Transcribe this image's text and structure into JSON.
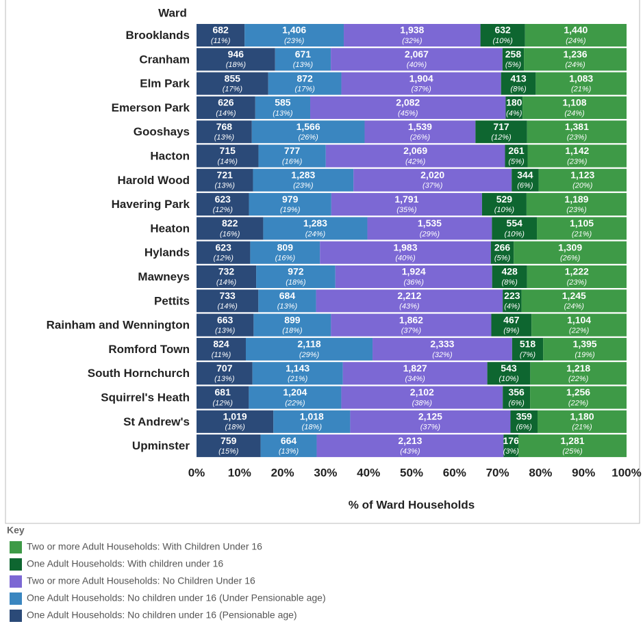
{
  "chart_data": {
    "type": "stacked_percent_barh",
    "category_header": "Ward",
    "xlabel": "% of Ward Households",
    "legend_title": "Key",
    "xlim": [
      0,
      100
    ],
    "xticks": [
      {
        "value": 0,
        "label": "0%"
      },
      {
        "value": 10,
        "label": "10%"
      },
      {
        "value": 20,
        "label": "20%"
      },
      {
        "value": 30,
        "label": "30%"
      },
      {
        "value": 40,
        "label": "40%"
      },
      {
        "value": 50,
        "label": "50%"
      },
      {
        "value": 60,
        "label": "60%"
      },
      {
        "value": 70,
        "label": "70%"
      },
      {
        "value": 80,
        "label": "80%"
      },
      {
        "value": 90,
        "label": "90%"
      },
      {
        "value": 100,
        "label": "100%"
      }
    ],
    "categories": [
      "Brooklands",
      "Cranham",
      "Elm Park",
      "Emerson Park",
      "Gooshays",
      "Hacton",
      "Harold Wood",
      "Havering Park",
      "Heaton",
      "Hylands",
      "Mawneys",
      "Pettits",
      "Rainham and Wennington",
      "Romford Town",
      "South Hornchurch",
      "Squirrel's Heath",
      "St Andrew's",
      "Upminster"
    ],
    "series": [
      {
        "name": "One Adult Households: No children under 16 (Pensionable age)",
        "color": "#2b4a78",
        "values": [
          682,
          946,
          855,
          626,
          768,
          715,
          721,
          623,
          822,
          623,
          732,
          733,
          663,
          824,
          707,
          681,
          1019,
          759
        ],
        "value_labels": [
          "682",
          "946",
          "855",
          "626",
          "768",
          "715",
          "721",
          "623",
          "822",
          "623",
          "732",
          "733",
          "663",
          "824",
          "707",
          "681",
          "1,019",
          "759"
        ],
        "percent_labels": [
          "(11%)",
          "(18%)",
          "(17%)",
          "(14%)",
          "(13%)",
          "(14%)",
          "(13%)",
          "(12%)",
          "(16%)",
          "(12%)",
          "(14%)",
          "(14%)",
          "(13%)",
          "(11%)",
          "(13%)",
          "(12%)",
          "(18%)",
          "(15%)"
        ]
      },
      {
        "name": "One Adult Households: No children under 16 (Under Pensionable age)",
        "color": "#3a86c0",
        "values": [
          1406,
          671,
          872,
          585,
          1566,
          777,
          1283,
          979,
          1283,
          809,
          972,
          684,
          899,
          2118,
          1143,
          1204,
          1018,
          664
        ],
        "value_labels": [
          "1,406",
          "671",
          "872",
          "585",
          "1,566",
          "777",
          "1,283",
          "979",
          "1,283",
          "809",
          "972",
          "684",
          "899",
          "2,118",
          "1,143",
          "1,204",
          "1,018",
          "664"
        ],
        "percent_labels": [
          "(23%)",
          "(13%)",
          "(17%)",
          "(13%)",
          "(26%)",
          "(16%)",
          "(23%)",
          "(19%)",
          "(24%)",
          "(16%)",
          "(18%)",
          "(13%)",
          "(18%)",
          "(29%)",
          "(21%)",
          "(22%)",
          "(18%)",
          "(13%)"
        ]
      },
      {
        "name": "Two or more Adult Households: No Children Under 16",
        "color": "#7c68d4",
        "values": [
          1938,
          2067,
          1904,
          2082,
          1539,
          2069,
          2020,
          1791,
          1535,
          1983,
          1924,
          2212,
          1862,
          2333,
          1827,
          2102,
          2125,
          2213
        ],
        "value_labels": [
          "1,938",
          "2,067",
          "1,904",
          "2,082",
          "1,539",
          "2,069",
          "2,020",
          "1,791",
          "1,535",
          "1,983",
          "1,924",
          "2,212",
          "1,862",
          "2,333",
          "1,827",
          "2,102",
          "2,125",
          "2,213"
        ],
        "percent_labels": [
          "(32%)",
          "(40%)",
          "(37%)",
          "(45%)",
          "(26%)",
          "(42%)",
          "(37%)",
          "(35%)",
          "(29%)",
          "(40%)",
          "(36%)",
          "(43%)",
          "(37%)",
          "(32%)",
          "(34%)",
          "(38%)",
          "(37%)",
          "(43%)"
        ]
      },
      {
        "name": "One Adult Households: With children under 16",
        "color": "#0e6630",
        "values": [
          632,
          258,
          413,
          180,
          717,
          261,
          344,
          529,
          554,
          266,
          428,
          223,
          467,
          518,
          543,
          356,
          359,
          176
        ],
        "value_labels": [
          "632",
          "258",
          "413",
          "180",
          "717",
          "261",
          "344",
          "529",
          "554",
          "266",
          "428",
          "223",
          "467",
          "518",
          "543",
          "356",
          "359",
          "176"
        ],
        "percent_labels": [
          "(10%)",
          "(5%)",
          "(8%)",
          "(4%)",
          "(12%)",
          "(5%)",
          "(6%)",
          "(10%)",
          "(10%)",
          "(5%)",
          "(8%)",
          "(4%)",
          "(9%)",
          "(7%)",
          "(10%)",
          "(6%)",
          "(6%)",
          "(3%)"
        ]
      },
      {
        "name": "Two or more Adult Households: With Children Under 16",
        "color": "#3e9a47",
        "values": [
          1440,
          1236,
          1083,
          1108,
          1381,
          1142,
          1123,
          1189,
          1105,
          1309,
          1222,
          1245,
          1104,
          1395,
          1218,
          1256,
          1180,
          1281
        ],
        "value_labels": [
          "1,440",
          "1,236",
          "1,083",
          "1,108",
          "1,381",
          "1,142",
          "1,123",
          "1,189",
          "1,105",
          "1,309",
          "1,222",
          "1,245",
          "1,104",
          "1,395",
          "1,218",
          "1,256",
          "1,180",
          "1,281"
        ],
        "percent_labels": [
          "(24%)",
          "(24%)",
          "(21%)",
          "(24%)",
          "(23%)",
          "(23%)",
          "(20%)",
          "(23%)",
          "(21%)",
          "(26%)",
          "(23%)",
          "(24%)",
          "(22%)",
          "(19%)",
          "(22%)",
          "(22%)",
          "(21%)",
          "(25%)"
        ]
      }
    ]
  }
}
